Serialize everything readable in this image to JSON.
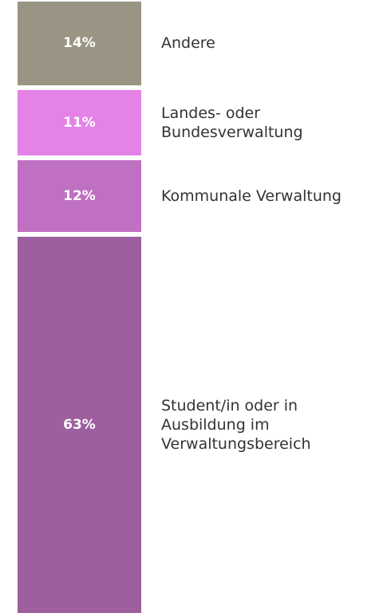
{
  "chart_data": {
    "type": "stacked-bar",
    "series": [
      {
        "name": "Student/in oder in Ausbildung im Verwaltungsbereich",
        "color": "#9e5f9e",
        "values": [
          63
        ],
        "value_labels": [
          "63%"
        ]
      },
      {
        "name": "Kommunale Verwaltung",
        "color": "#c070c2",
        "values": [
          12
        ],
        "value_labels": [
          "12%"
        ]
      },
      {
        "name": "Landes- oder Bundesverwaltung",
        "color": "#e482e6",
        "values": [
          11
        ],
        "value_labels": [
          "11%"
        ]
      },
      {
        "name": "Andere",
        "color": "#9a9484",
        "values": [
          14
        ],
        "value_labels": [
          "14%"
        ]
      }
    ]
  }
}
